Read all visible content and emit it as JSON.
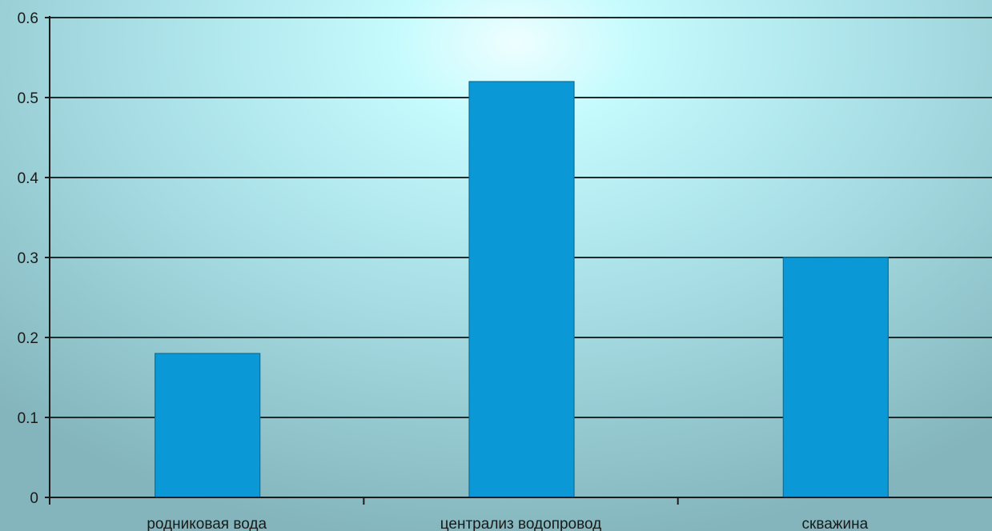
{
  "chart_data": {
    "type": "bar",
    "categories": [
      "родниковая вода",
      "централиз водопровод",
      "скважина"
    ],
    "values": [
      0.18,
      0.52,
      0.3
    ],
    "title": "",
    "xlabel": "",
    "ylabel": "",
    "ylim": [
      0,
      0.6
    ],
    "yticks": [
      "0",
      "0.1",
      "0.2",
      "0.3",
      "0.4",
      "0.5",
      "0.6"
    ],
    "grid": true,
    "legend": "none",
    "bar_color": "#0a99d6"
  }
}
